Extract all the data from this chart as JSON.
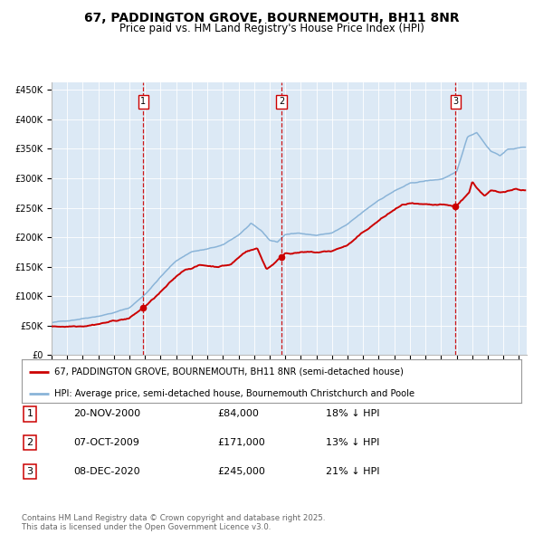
{
  "title": "67, PADDINGTON GROVE, BOURNEMOUTH, BH11 8NR",
  "subtitle": "Price paid vs. HM Land Registry's House Price Index (HPI)",
  "background_color": "#ffffff",
  "plot_bg_color": "#dce9f5",
  "hpi_color": "#8ab4d8",
  "price_color": "#cc0000",
  "legend_line1": "67, PADDINGTON GROVE, BOURNEMOUTH, BH11 8NR (semi-detached house)",
  "legend_line2": "HPI: Average price, semi-detached house, Bournemouth Christchurch and Poole",
  "transactions": [
    {
      "date_year": 2000.89,
      "price": 84000,
      "label": "1"
    },
    {
      "date_year": 2009.77,
      "price": 171000,
      "label": "2"
    },
    {
      "date_year": 2020.93,
      "price": 245000,
      "label": "3"
    }
  ],
  "table_rows": [
    [
      "1",
      "20-NOV-2000",
      "£84,000",
      "18% ↓ HPI"
    ],
    [
      "2",
      "07-OCT-2009",
      "£171,000",
      "13% ↓ HPI"
    ],
    [
      "3",
      "08-DEC-2020",
      "£245,000",
      "21% ↓ HPI"
    ]
  ],
  "footer": "Contains HM Land Registry data © Crown copyright and database right 2025.\nThis data is licensed under the Open Government Licence v3.0.",
  "ylim": [
    0,
    460000
  ],
  "yticks": [
    0,
    50000,
    100000,
    150000,
    200000,
    250000,
    300000,
    350000,
    400000,
    450000
  ],
  "start_year": 1995,
  "end_year": 2025.5,
  "hpi_keypoints": [
    [
      1995.0,
      55000
    ],
    [
      1996.0,
      58000
    ],
    [
      1997.0,
      63000
    ],
    [
      1998.0,
      68000
    ],
    [
      1999.0,
      74000
    ],
    [
      2000.0,
      82000
    ],
    [
      2001.0,
      105000
    ],
    [
      2002.0,
      135000
    ],
    [
      2003.0,
      162000
    ],
    [
      2004.0,
      178000
    ],
    [
      2005.0,
      182000
    ],
    [
      2006.0,
      188000
    ],
    [
      2007.0,
      205000
    ],
    [
      2007.8,
      224000
    ],
    [
      2008.5,
      210000
    ],
    [
      2009.0,
      195000
    ],
    [
      2009.5,
      192000
    ],
    [
      2010.0,
      205000
    ],
    [
      2011.0,
      207000
    ],
    [
      2012.0,
      204000
    ],
    [
      2013.0,
      208000
    ],
    [
      2014.0,
      222000
    ],
    [
      2015.0,
      242000
    ],
    [
      2016.0,
      262000
    ],
    [
      2017.0,
      278000
    ],
    [
      2018.0,
      290000
    ],
    [
      2019.0,
      294000
    ],
    [
      2020.0,
      297000
    ],
    [
      2021.0,
      308000
    ],
    [
      2021.7,
      368000
    ],
    [
      2022.3,
      376000
    ],
    [
      2022.8,
      358000
    ],
    [
      2023.2,
      345000
    ],
    [
      2023.8,
      338000
    ],
    [
      2024.3,
      348000
    ],
    [
      2025.4,
      352000
    ]
  ],
  "price_keypoints": [
    [
      1995.0,
      48000
    ],
    [
      1996.0,
      49000
    ],
    [
      1997.0,
      52000
    ],
    [
      1998.0,
      57000
    ],
    [
      1999.0,
      62000
    ],
    [
      2000.0,
      67000
    ],
    [
      2000.89,
      84000
    ],
    [
      2001.5,
      98000
    ],
    [
      2002.5,
      122000
    ],
    [
      2003.5,
      146000
    ],
    [
      2004.5,
      155000
    ],
    [
      2005.5,
      153000
    ],
    [
      2006.5,
      157000
    ],
    [
      2007.5,
      180000
    ],
    [
      2008.2,
      185000
    ],
    [
      2008.8,
      150000
    ],
    [
      2009.77,
      171000
    ],
    [
      2010.0,
      178000
    ],
    [
      2011.0,
      180000
    ],
    [
      2012.0,
      178000
    ],
    [
      2013.0,
      180000
    ],
    [
      2014.0,
      190000
    ],
    [
      2015.0,
      210000
    ],
    [
      2016.0,
      230000
    ],
    [
      2017.0,
      248000
    ],
    [
      2017.5,
      255000
    ],
    [
      2018.0,
      258000
    ],
    [
      2018.5,
      255000
    ],
    [
      2019.0,
      252000
    ],
    [
      2019.5,
      250000
    ],
    [
      2020.0,
      250000
    ],
    [
      2020.93,
      245000
    ],
    [
      2021.2,
      252000
    ],
    [
      2021.8,
      270000
    ],
    [
      2022.0,
      288000
    ],
    [
      2022.3,
      278000
    ],
    [
      2022.8,
      264000
    ],
    [
      2023.2,
      272000
    ],
    [
      2023.8,
      268000
    ],
    [
      2024.2,
      272000
    ],
    [
      2024.8,
      276000
    ],
    [
      2025.4,
      274000
    ]
  ]
}
